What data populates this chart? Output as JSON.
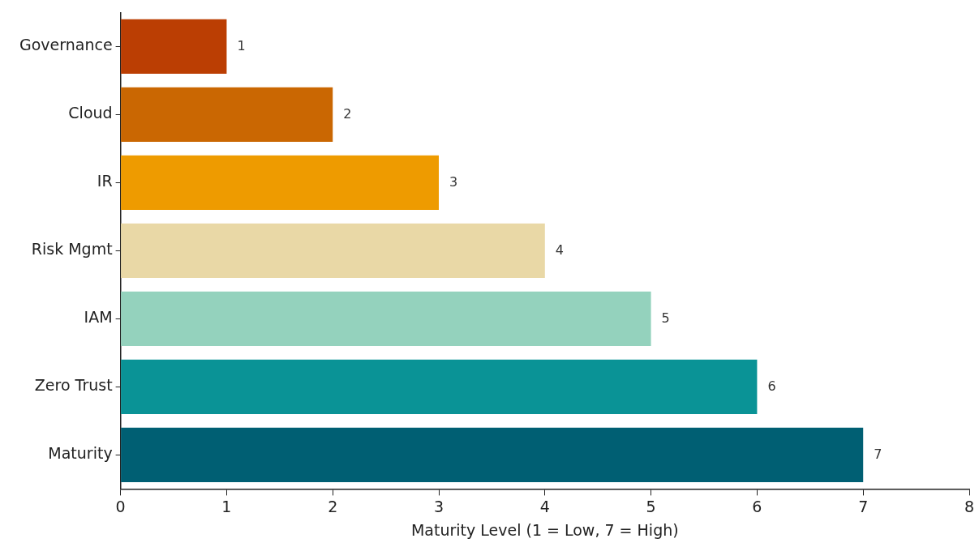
{
  "chart_data": {
    "type": "bar",
    "orientation": "horizontal",
    "xlabel": "Maturity Level (1 = Low, 7 = High)",
    "categories": [
      "Governance",
      "Cloud",
      "IR",
      "Risk Mgmt",
      "IAM",
      "Zero Trust",
      "Maturity"
    ],
    "values": [
      1,
      2,
      3,
      4,
      5,
      6,
      7
    ],
    "colors": [
      "#bb3e03",
      "#ca6702",
      "#ee9b00",
      "#e9d8a6",
      "#94d2bd",
      "#0a9396",
      "#005f73"
    ],
    "xlim": [
      0,
      8
    ],
    "xticks": [
      0,
      1,
      2,
      3,
      4,
      5,
      6,
      7,
      8
    ],
    "grid": false,
    "legend": false,
    "data_labels": true
  }
}
